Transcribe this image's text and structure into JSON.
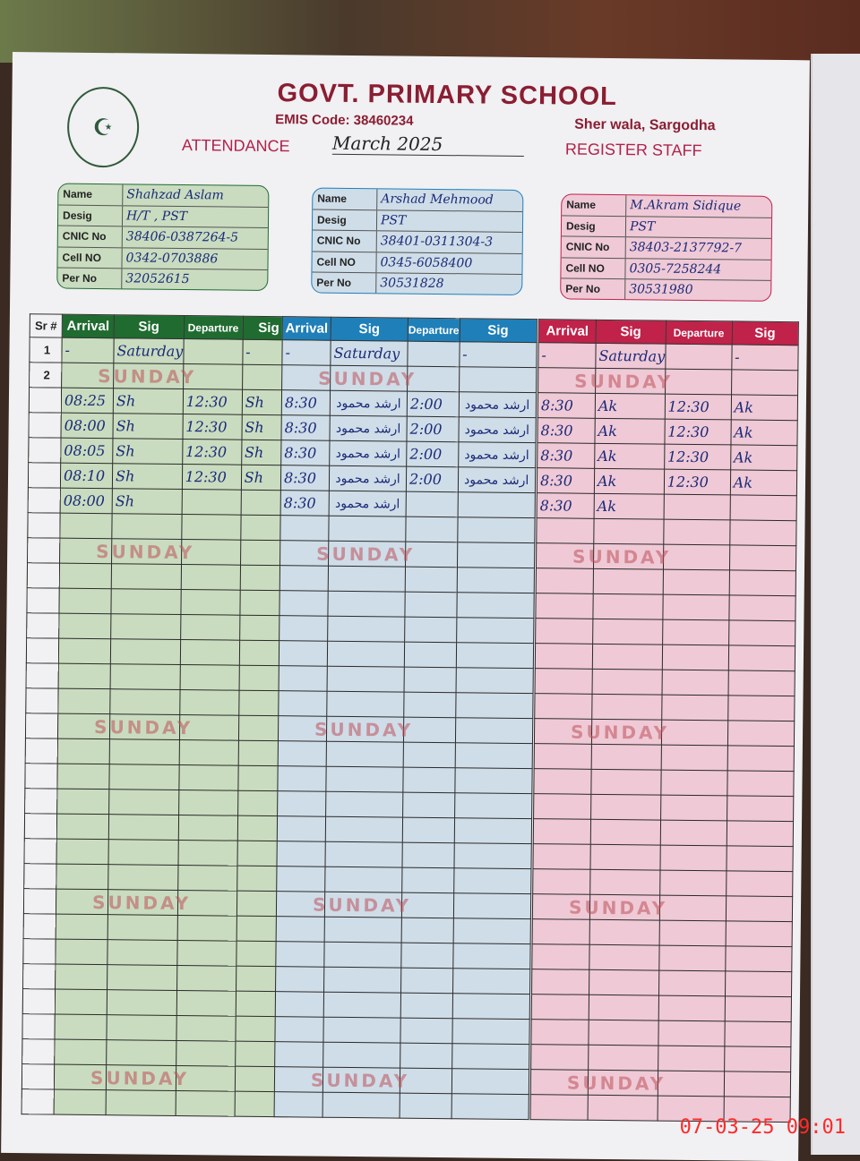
{
  "header": {
    "school": "GOVT. PRIMARY SCHOOL",
    "emis": "EMIS Code: 38460234",
    "place": "Sher wala, Sargodha",
    "attendance_label": "ATTENDANCE",
    "month": "March 2025",
    "register_label": "REGISTER STAFF",
    "logo": "punjab-govt-emblem"
  },
  "columns": {
    "sr": "Sr #",
    "arrival": "Arrival",
    "sig": "Sig",
    "departure": "Departure"
  },
  "field_labels": {
    "name": "Name",
    "desig": "Desig",
    "cnic": "CNIC No",
    "cell": "Cell NO",
    "per": "Per No"
  },
  "stamp_text": "SUNDAY",
  "sunday_rows": [
    2,
    9,
    16,
    23,
    30
  ],
  "row_count": 31,
  "staff": [
    {
      "color": "#1f6b30",
      "bg": "#c9dcbf",
      "name": "Shahzad Aslam",
      "desig": "H/T , PST",
      "cnic": "38406-0387264-5",
      "cell": "0342-0703886",
      "per": "32052615",
      "rows": {
        "1": [
          "-",
          "Saturday",
          "",
          "-"
        ],
        "3": [
          "08:25",
          "Sh",
          "12:30",
          "Sh"
        ],
        "4": [
          "08:00",
          "Sh",
          "12:30",
          "Sh"
        ],
        "5": [
          "08:05",
          "Sh",
          "12:30",
          "Sh"
        ],
        "6": [
          "08:10",
          "Sh",
          "12:30",
          "Sh"
        ],
        "7": [
          "08:00",
          "Sh",
          "",
          ""
        ]
      }
    },
    {
      "color": "#1f7fb8",
      "bg": "#cfdde8",
      "name": "Arshad Mehmood",
      "desig": "PST",
      "cnic": "38401-0311304-3",
      "cell": "0345-6058400",
      "per": "30531828",
      "rows": {
        "1": [
          "-",
          "Saturday",
          "",
          "-"
        ],
        "3": [
          "8:30",
          "ارشد محمود",
          "2:00",
          "ارشد محمود"
        ],
        "4": [
          "8:30",
          "ارشد محمود",
          "2:00",
          "ارشد محمود"
        ],
        "5": [
          "8:30",
          "ارشد محمود",
          "2:00",
          "ارشد محمود"
        ],
        "6": [
          "8:30",
          "ارشد محمود",
          "2:00",
          "ارشد محمود"
        ],
        "7": [
          "8:30",
          "ارشد محمود",
          "",
          ""
        ]
      }
    },
    {
      "color": "#c0224a",
      "bg": "#efc9d6",
      "name": "M.Akram Sidique",
      "desig": "PST",
      "cnic": "38403-2137792-7",
      "cell": "0305-7258244",
      "per": "30531980",
      "rows": {
        "1": [
          "-",
          "Saturday",
          "",
          "-"
        ],
        "3": [
          "8:30",
          "Ak",
          "12:30",
          "Ak"
        ],
        "4": [
          "8:30",
          "Ak",
          "12:30",
          "Ak"
        ],
        "5": [
          "8:30",
          "Ak",
          "12:30",
          "Ak"
        ],
        "6": [
          "8:30",
          "Ak",
          "12:30",
          "Ak"
        ],
        "7": [
          "8:30",
          "Ak",
          "",
          ""
        ]
      }
    }
  ],
  "camera_timestamp": "07-03-25  09:01"
}
